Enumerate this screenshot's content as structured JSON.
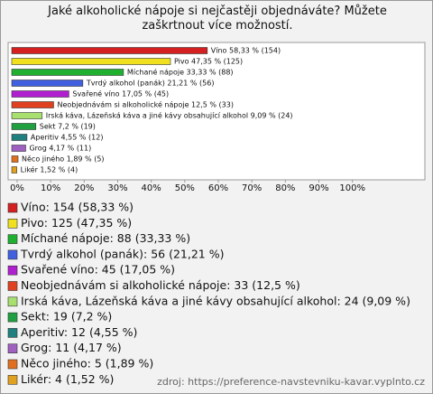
{
  "chart_data": {
    "type": "hbar",
    "title": "Jaké alkoholické nápoje si nejčastěji objednáváte? Můžete zaškrtnout více možností.",
    "values": [
      58.33,
      47.35,
      33.33,
      21.21,
      17.05,
      12.5,
      9.09,
      7.2,
      4.55,
      4.17,
      1.89,
      1.52
    ],
    "value_labels": [
      "Víno 58,33 % (154)",
      "Pivo 47,35 % (125)",
      "Míchané nápoje 33,33 % (88)",
      "Tvrdý alkohol (panák) 21,21 % (56)",
      "Svařené víno 17,05 % (45)",
      "Neobjednávám si alkoholické nápoje 12,5 % (33)",
      "Irská káva, Lázeňská káva a jiné kávy obsahující alkohol 9,09 % (24)",
      "Sekt 7,2 % (19)",
      "Aperitiv 4,55 % (12)",
      "Grog 4,17 % (11)",
      "Něco jiného 1,89 % (5)",
      "Likér 1,52 % (4)"
    ],
    "legend": [
      "Víno: 154 (58,33 %)",
      "Pivo: 125 (47,35 %)",
      "Míchané nápoje: 88 (33,33 %)",
      "Tvrdý alkohol (panák): 56 (21,21 %)",
      "Svařené víno: 45 (17,05 %)",
      "Neobjednávám si alkoholické nápoje: 33 (12,5 %)",
      "Irská káva, Lázeňská káva a jiné kávy obsahující alkohol: 24 (9,09 %)",
      "Sekt: 19 (7,2 %)",
      "Aperitiv: 12 (4,55 %)",
      "Grog: 11 (4,17 %)",
      "Něco jiného: 5 (1,89 %)",
      "Likér: 4 (1,52 %)"
    ],
    "colors": [
      "#d42020",
      "#f0e020",
      "#20b030",
      "#4060e0",
      "#b020d0",
      "#e04020",
      "#a8e070",
      "#20a040",
      "#208080",
      "#a060c0",
      "#e07020",
      "#e0a020"
    ],
    "xlim": [
      0,
      120
    ],
    "xticks": [
      {
        "value": 0,
        "label": "0%"
      },
      {
        "value": 10,
        "label": "10%"
      },
      {
        "value": 20,
        "label": "20%"
      },
      {
        "value": 30,
        "label": "30%"
      },
      {
        "value": 40,
        "label": "40%"
      },
      {
        "value": 50,
        "label": "50%"
      },
      {
        "value": 60,
        "label": "60%"
      },
      {
        "value": 70,
        "label": "70%"
      },
      {
        "value": 80,
        "label": "80%"
      },
      {
        "value": 90,
        "label": "90%"
      },
      {
        "value": 100,
        "label": "100%"
      }
    ],
    "source": "zdroj: https://preference-navstevniku-kavar.vyplnto.cz"
  }
}
